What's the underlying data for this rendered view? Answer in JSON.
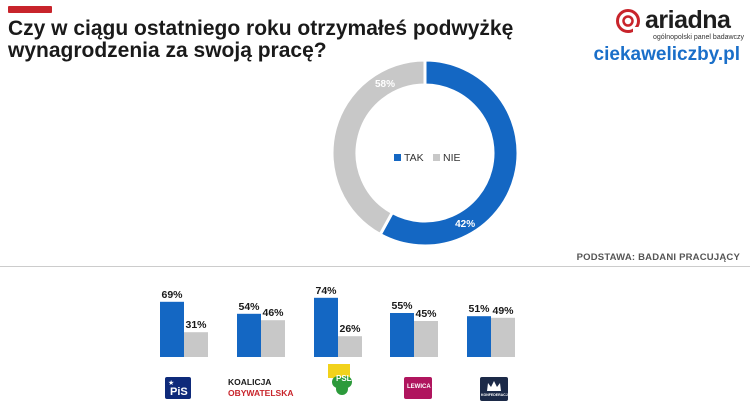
{
  "title_line1": "Czy w ciągu ostatniego roku otrzymałeś podwyżkę",
  "title_line2": "wynagrodzenia  za swoją pracę?",
  "brand": {
    "name": "ariadna",
    "tagline": "ogólnopolski panel badawczy",
    "site": "ciekaweliczby.pl"
  },
  "basis": "PODSTAWA: BADANI PRACUJĄCY",
  "colors": {
    "tak": "#1467c3",
    "nie": "#c8c8c8",
    "accent": "#c8242b",
    "site": "#1a6fc9"
  },
  "parties": [
    {
      "name": "PiS",
      "logo": "PiS"
    },
    {
      "name": "Koalicja Obywatelska",
      "logo_line1": "KOALICJA",
      "logo_line2": "OBYWATELSKA"
    },
    {
      "name": "PSL",
      "logo": "PSL"
    },
    {
      "name": "Lewica",
      "logo": "LEWICA"
    },
    {
      "name": "Konfederacja",
      "logo": "KONFEDERACJA"
    }
  ],
  "chart_data": [
    {
      "type": "pie",
      "categories": [
        "TAK",
        "NIE"
      ],
      "values": [
        58,
        42
      ],
      "data_labels": [
        "58%",
        "42%"
      ],
      "donut": true,
      "legend": "center"
    },
    {
      "type": "bar",
      "categories": [
        "PiS",
        "KO",
        "PSL",
        "Lewica",
        "Konfederacja"
      ],
      "series": [
        {
          "name": "TAK",
          "values": [
            69,
            54,
            74,
            55,
            51
          ],
          "labels": [
            "69%",
            "54%",
            "74%",
            "55%",
            "51%"
          ]
        },
        {
          "name": "NIE",
          "values": [
            31,
            46,
            26,
            45,
            49
          ],
          "labels": [
            "31%",
            "46%",
            "26%",
            "45%",
            "49%"
          ]
        }
      ],
      "ylim": [
        0,
        100
      ]
    }
  ]
}
